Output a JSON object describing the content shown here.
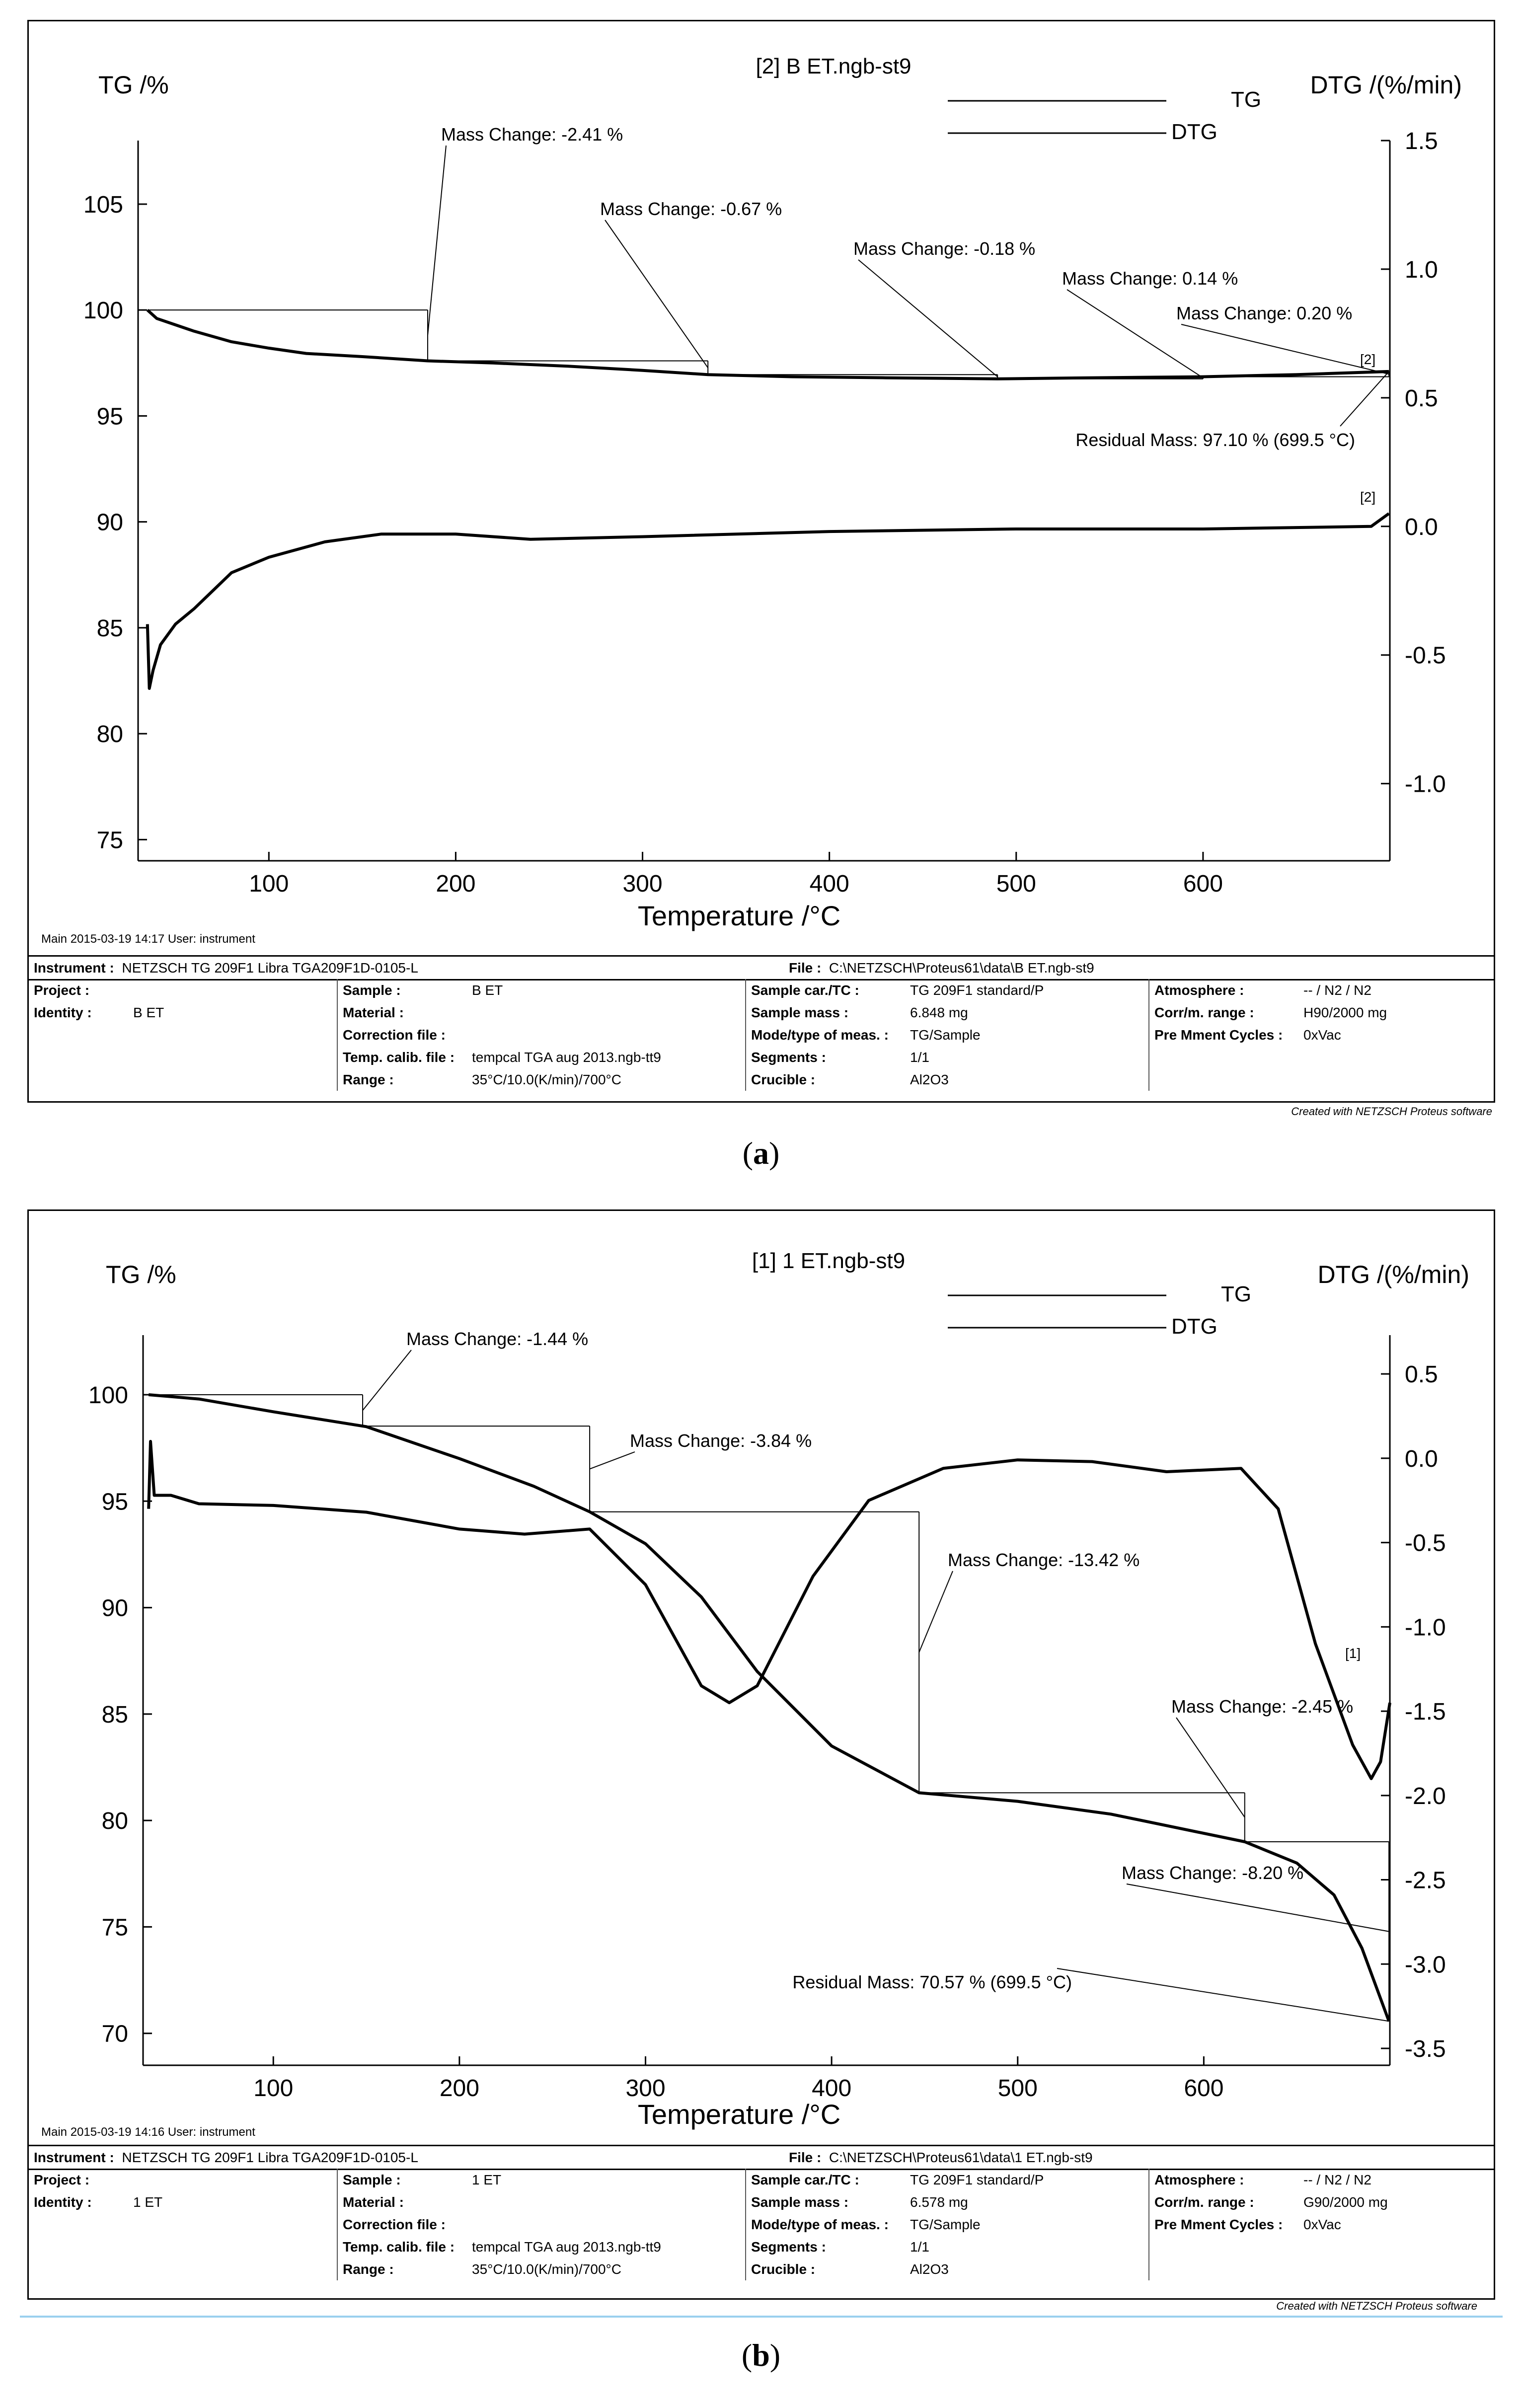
{
  "panels": [
    {
      "id": "a",
      "caption": "a",
      "legend_title": "[2] B ET.ngb-st9",
      "legend_tg": "TG",
      "legend_dtg": "DTG",
      "left_axis_label": "TG /%",
      "right_axis_label": "DTG /(%/min)",
      "x_axis_label": "Temperature /°C",
      "footer_note": "Main   2015-03-19 14:17   User: instrument",
      "info": {
        "instrument_label": "Instrument :",
        "instrument": "NETZSCH TG 209F1 Libra TGA209F1D-0105-L",
        "file_label": "File :",
        "file": "C:\\NETZSCH\\Proteus61\\data\\B ET.ngb-st9",
        "project_label": "Project :",
        "identity_label": "Identity :",
        "identity": "B ET",
        "sample_label": "Sample :",
        "sample": "B ET",
        "material_label": "Material :",
        "correction_label": "Correction file :",
        "temp_calib_label": "Temp. calib. file :",
        "temp_calib": "tempcal TGA aug 2013.ngb-tt9",
        "range_label": "Range :",
        "range": "35°C/10.0(K/min)/700°C",
        "sample_car_label": "Sample car./TC :",
        "sample_car": "TG 209F1 standard/P",
        "sample_mass_label": "Sample mass :",
        "sample_mass": "6.848 mg",
        "mode_label": "Mode/type of meas. :",
        "mode": "TG/Sample",
        "segments_label": "Segments :",
        "segments": "1/1",
        "crucible_label": "Crucible :",
        "crucible": "Al2O3",
        "atmosphere_label": "Atmosphere :",
        "atmosphere": "-- / N2 / N2",
        "corr_range_label": "Corr/m. range :",
        "corr_range": "H90/2000 mg",
        "pre_cycles_label": "Pre Mment Cycles :",
        "pre_cycles": "0xVac",
        "created": "Created with NETZSCH Proteus software"
      }
    },
    {
      "id": "b",
      "caption": "b",
      "legend_title": "[1] 1 ET.ngb-st9",
      "legend_tg": "TG",
      "legend_dtg": "DTG",
      "left_axis_label": "TG /%",
      "right_axis_label": "DTG /(%/min)",
      "x_axis_label": "Temperature /°C",
      "footer_note": "Main   2015-03-19 14:16   User: instrument",
      "info": {
        "instrument_label": "Instrument :",
        "instrument": "NETZSCH TG 209F1 Libra TGA209F1D-0105-L",
        "file_label": "File :",
        "file": "C:\\NETZSCH\\Proteus61\\data\\1 ET.ngb-st9",
        "project_label": "Project :",
        "identity_label": "Identity :",
        "identity": "1 ET",
        "sample_label": "Sample :",
        "sample": "1 ET",
        "material_label": "Material :",
        "correction_label": "Correction file :",
        "temp_calib_label": "Temp. calib. file :",
        "temp_calib": "tempcal TGA aug 2013.ngb-tt9",
        "range_label": "Range :",
        "range": "35°C/10.0(K/min)/700°C",
        "sample_car_label": "Sample car./TC :",
        "sample_car": "TG 209F1 standard/P",
        "sample_mass_label": "Sample mass :",
        "sample_mass": "6.578 mg",
        "mode_label": "Mode/type of meas. :",
        "mode": "TG/Sample",
        "segments_label": "Segments :",
        "segments": "1/1",
        "crucible_label": "Crucible :",
        "crucible": "Al2O3",
        "atmosphere_label": "Atmosphere :",
        "atmosphere": "-- / N2 / N2",
        "corr_range_label": "Corr/m. range :",
        "corr_range": "G90/2000 mg",
        "pre_cycles_label": "Pre Mment Cycles :",
        "pre_cycles": "0xVac",
        "created": "Created with NETZSCH Proteus software"
      }
    }
  ],
  "chart_data": [
    {
      "type": "line",
      "panel": "a",
      "x_ticks": [
        100,
        200,
        300,
        400,
        500,
        600
      ],
      "xlim": [
        30,
        700
      ],
      "y_left_ticks": [
        75,
        80,
        85,
        90,
        95,
        100,
        105
      ],
      "y_left_lim": [
        74,
        108
      ],
      "y_right_ticks": [
        -1.0,
        -0.5,
        0.0,
        0.5,
        1.0,
        1.5
      ],
      "y_right_lim": [
        -1.3,
        1.5
      ],
      "series": [
        {
          "name": "TG",
          "axis": "left",
          "x": [
            35,
            40,
            50,
            60,
            80,
            100,
            120,
            150,
            185,
            220,
            260,
            300,
            335,
            380,
            430,
            490,
            540,
            600,
            650,
            699.5
          ],
          "y": [
            100,
            99.6,
            99.3,
            99.0,
            98.5,
            98.2,
            97.95,
            97.8,
            97.6,
            97.5,
            97.35,
            97.15,
            96.95,
            96.85,
            96.8,
            96.75,
            96.8,
            96.85,
            96.95,
            97.1
          ]
        },
        {
          "name": "DTG",
          "axis": "right",
          "x": [
            35,
            36,
            38,
            42,
            50,
            60,
            70,
            80,
            100,
            130,
            160,
            200,
            240,
            300,
            400,
            500,
            600,
            690,
            699.5
          ],
          "y": [
            -0.38,
            -0.63,
            -0.56,
            -0.46,
            -0.38,
            -0.32,
            -0.25,
            -0.18,
            -0.12,
            -0.06,
            -0.03,
            -0.03,
            -0.05,
            -0.04,
            -0.02,
            -0.01,
            -0.01,
            0.0,
            0.05
          ]
        }
      ],
      "mass_changes": [
        {
          "label": "Mass Change: -2.41 %",
          "t_start": 35,
          "t_end": 185,
          "value": -2.41
        },
        {
          "label": "Mass Change: -0.67 %",
          "t_start": 185,
          "t_end": 335,
          "value": -0.67
        },
        {
          "label": "Mass Change: -0.18 %",
          "t_start": 335,
          "t_end": 490,
          "value": -0.18
        },
        {
          "label": "Mass Change: 0.14 %",
          "t_start": 490,
          "t_end": 600,
          "value": 0.14
        },
        {
          "label": "Mass Change: 0.20 %",
          "t_start": 600,
          "t_end": 699.5,
          "value": 0.2
        }
      ],
      "residual_mass": {
        "label": "Residual Mass: 97.10 % (699.5 °C)",
        "value": 97.1,
        "temperature": 699.5
      },
      "end_markers": [
        "[2]",
        "[2]"
      ]
    },
    {
      "type": "line",
      "panel": "b",
      "x_ticks": [
        100,
        200,
        300,
        400,
        500,
        600
      ],
      "xlim": [
        30,
        700
      ],
      "y_left_ticks": [
        70,
        75,
        80,
        85,
        90,
        95,
        100
      ],
      "y_left_lim": [
        68.5,
        102.8
      ],
      "y_right_ticks": [
        -3.5,
        -3.0,
        -2.5,
        -2.0,
        -1.5,
        -1.0,
        -0.5,
        0.0,
        0.5
      ],
      "y_right_lim": [
        -3.6,
        0.73
      ],
      "series": [
        {
          "name": "TG",
          "axis": "left",
          "x": [
            33,
            60,
            100,
            150,
            200,
            240,
            270,
            300,
            330,
            360,
            400,
            447,
            500,
            550,
            622,
            650,
            670,
            685,
            699.5
          ],
          "y": [
            100,
            99.8,
            99.2,
            98.5,
            97.0,
            95.7,
            94.5,
            93.0,
            90.5,
            87.0,
            83.5,
            81.3,
            80.9,
            80.3,
            79.0,
            78.0,
            76.5,
            74.0,
            70.57
          ]
        },
        {
          "name": "DTG",
          "axis": "right",
          "x": [
            33,
            34,
            36,
            45,
            60,
            100,
            150,
            200,
            235,
            270,
            300,
            330,
            345,
            360,
            390,
            420,
            460,
            500,
            540,
            580,
            620,
            640,
            660,
            680,
            690,
            695,
            700
          ],
          "y": [
            -0.3,
            0.1,
            -0.22,
            -0.22,
            -0.27,
            -0.28,
            -0.32,
            -0.42,
            -0.45,
            -0.42,
            -0.75,
            -1.35,
            -1.45,
            -1.35,
            -0.7,
            -0.25,
            -0.06,
            -0.01,
            -0.02,
            -0.08,
            -0.06,
            -0.3,
            -1.1,
            -1.7,
            -1.9,
            -1.8,
            -1.45
          ]
        }
      ],
      "mass_changes": [
        {
          "label": "Mass Change: -1.44 %",
          "t_start": 33,
          "t_end": 148,
          "value": -1.44
        },
        {
          "label": "Mass Change: -3.84 %",
          "t_start": 148,
          "t_end": 270,
          "value": -3.84
        },
        {
          "label": "Mass Change: -13.42 %",
          "t_start": 270,
          "t_end": 447,
          "value": -13.42
        },
        {
          "label": "Mass Change: -2.45 %",
          "t_start": 447,
          "t_end": 622,
          "value": -2.45
        },
        {
          "label": "Mass Change: -8.20 %",
          "t_start": 622,
          "t_end": 699.5,
          "value": -8.2
        }
      ],
      "residual_mass": {
        "label": "Residual Mass: 70.57 % (699.5 °C)",
        "value": 70.57,
        "temperature": 699.5
      },
      "end_markers": [
        "[1]"
      ]
    }
  ]
}
